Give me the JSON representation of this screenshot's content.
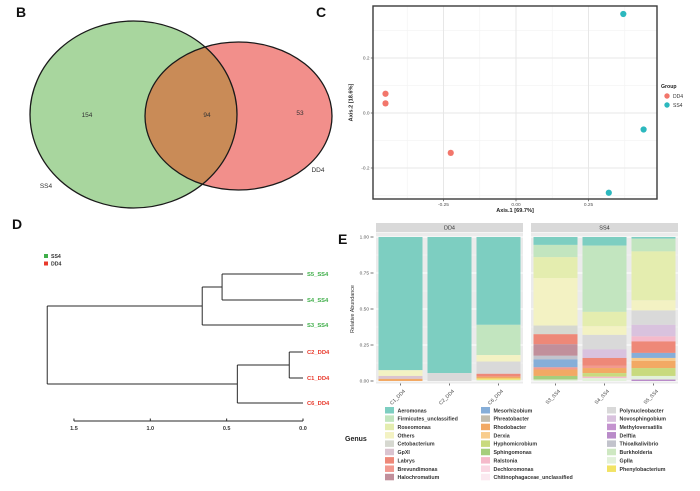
{
  "figure": {
    "panel_labels": {
      "b": "B",
      "c": "C",
      "d": "D",
      "e": "E"
    }
  },
  "chart_data": [
    {
      "id": "venn",
      "type": "venn",
      "sets": [
        {
          "label": "SS4",
          "unique_count": "154",
          "color": "#A8D69E"
        },
        {
          "label": "DD4",
          "unique_count": "53",
          "color": "#F28F8B"
        }
      ],
      "overlap_count": "94",
      "overlap_color": "#C98B57",
      "outline_color": "#1a1a1a"
    },
    {
      "id": "pcoa",
      "type": "scatter",
      "xlabel": "Axis.1  [69.7%]",
      "ylabel": "Axis.2  [18.6%]",
      "xlim": [
        -0.5,
        0.5
      ],
      "ylim": [
        -0.31,
        0.39
      ],
      "xticks": [
        {
          "label": "-0.25",
          "value": -0.25
        },
        {
          "label": "0.00",
          "value": 0
        },
        {
          "label": "0.25",
          "value": 0.25
        }
      ],
      "yticks": [
        {
          "label": "0.2",
          "value": 0.2
        },
        {
          "label": "0.0",
          "value": 0
        },
        {
          "label": "-0.2",
          "value": -0.2
        }
      ],
      "legend_title": "Group",
      "series": [
        {
          "name": "DD4",
          "color": "#F2766B",
          "points": [
            [
              -0.45,
              0.07
            ],
            [
              -0.45,
              0.035
            ],
            [
              -0.225,
              -0.145
            ]
          ]
        },
        {
          "name": "SS4",
          "color": "#2CB8BE",
          "points": [
            [
              0.37,
              0.36
            ],
            [
              0.44,
              -0.06
            ],
            [
              0.32,
              -0.29
            ]
          ]
        }
      ]
    },
    {
      "id": "dendrogram",
      "type": "dendrogram",
      "legend": [
        {
          "label": "SS4",
          "color": "#3FAE49"
        },
        {
          "label": "DD4",
          "color": "#E8392B"
        }
      ],
      "leaves": [
        {
          "name": "S5_SS4",
          "group": "SS4"
        },
        {
          "name": "S4_SS4",
          "group": "SS4"
        },
        {
          "name": "S3_SS4",
          "group": "SS4"
        },
        {
          "name": "C2_DD4",
          "group": "DD4"
        },
        {
          "name": "C1_DD4",
          "group": "DD4"
        },
        {
          "name": "C6_DD4",
          "group": "DD4"
        }
      ],
      "merges": [
        {
          "id": "m1",
          "a": "S5_SS4",
          "b": "S4_SS4",
          "height": 0.53
        },
        {
          "id": "m2",
          "a": "m1",
          "b": "S3_SS4",
          "height": 0.66
        },
        {
          "id": "m3",
          "a": "C2_DD4",
          "b": "C1_DD4",
          "height": 0.09
        },
        {
          "id": "m4",
          "a": "m3",
          "b": "C6_DD4",
          "height": 0.43
        },
        {
          "id": "root",
          "a": "m2",
          "b": "m4",
          "height": 1.675
        }
      ],
      "axis_ticks": [
        {
          "label": "1.5",
          "value": 1.5
        },
        {
          "label": "1.0",
          "value": 1.0
        },
        {
          "label": "0.5",
          "value": 0.5
        },
        {
          "label": "0.0",
          "value": 0.0
        }
      ]
    },
    {
      "id": "abundance",
      "type": "stacked-bar",
      "ylabel": "Relative Abundance",
      "yticks": [
        {
          "label": "1.00",
          "value": 1.0
        },
        {
          "label": "0.75",
          "value": 0.75
        },
        {
          "label": "0.50",
          "value": 0.5
        },
        {
          "label": "0.25",
          "value": 0.25
        },
        {
          "label": "0.00",
          "value": 0.0
        }
      ],
      "legend_title": "Genus",
      "facets": [
        {
          "label": "DD4",
          "bars": [
            {
              "name": "C1_DD4",
              "segments": [
                [
                  "Aeromonas",
                  0.925
                ],
                [
                  "Others",
                  0.04
                ],
                [
                  "GpXI",
                  0.02
                ],
                [
                  "Rhodobacter",
                  0.015
                ]
              ]
            },
            {
              "name": "C2_DD4",
              "segments": [
                [
                  "Aeromonas",
                  0.945
                ],
                [
                  "Polynucleobacter",
                  0.055
                ]
              ]
            },
            {
              "name": "C6_DD4",
              "segments": [
                [
                  "Aeromonas",
                  0.61
                ],
                [
                  "Firmicutes_unclassified",
                  0.21
                ],
                [
                  "Others",
                  0.045
                ],
                [
                  "Polynucleobacter",
                  0.085
                ],
                [
                  "Labrys",
                  0.02
                ],
                [
                  "Rhodobacter",
                  0.012
                ],
                [
                  "Phenylobacterium",
                  0.01
                ],
                [
                  "GpIIa",
                  0.008
                ]
              ]
            }
          ]
        },
        {
          "label": "SS4",
          "bars": [
            {
              "name": "S3_SS4",
              "segments": [
                [
                  "Aeromonas",
                  0.055
                ],
                [
                  "Firmicutes_unclassified",
                  0.085
                ],
                [
                  "Roseomonas",
                  0.145
                ],
                [
                  "Others",
                  0.33
                ],
                [
                  "Cetobacterium",
                  0.06
                ],
                [
                  "Labrys",
                  0.07
                ],
                [
                  "Halochromatium",
                  0.08
                ],
                [
                  "Thioalkalivibrio",
                  0.025
                ],
                [
                  "Mesorhizobium",
                  0.055
                ],
                [
                  "Brevundimonas",
                  0.015
                ],
                [
                  "Rhodobacter",
                  0.045
                ],
                [
                  "Sphingomonas",
                  0.025
                ],
                [
                  "GpIIa",
                  0.01
                ]
              ]
            },
            {
              "name": "S4_SS4",
              "segments": [
                [
                  "Aeromonas",
                  0.06
                ],
                [
                  "Firmicutes_unclassified",
                  0.46
                ],
                [
                  "Roseomonas",
                  0.1
                ],
                [
                  "Others",
                  0.06
                ],
                [
                  "Polynucleobacter",
                  0.1
                ],
                [
                  "Novosphingobium",
                  0.06
                ],
                [
                  "Labrys",
                  0.055
                ],
                [
                  "Brevundimonas",
                  0.015
                ],
                [
                  "Rhodobacter",
                  0.035
                ],
                [
                  "Hyphomicrobium",
                  0.025
                ],
                [
                  "Ralstonia",
                  0.01
                ],
                [
                  "GpIIa",
                  0.02
                ]
              ]
            },
            {
              "name": "S5_SS4",
              "segments": [
                [
                  "Aeromonas",
                  0.012
                ],
                [
                  "Firmicutes_unclassified",
                  0.088
                ],
                [
                  "Roseomonas",
                  0.34
                ],
                [
                  "Others",
                  0.07
                ],
                [
                  "Polynucleobacter",
                  0.1
                ],
                [
                  "Novosphingobium",
                  0.08
                ],
                [
                  "Ralstonia",
                  0.035
                ],
                [
                  "Labrys",
                  0.08
                ],
                [
                  "Mesorhizobium",
                  0.035
                ],
                [
                  "Derxia",
                  0.02
                ],
                [
                  "Rhodobacter",
                  0.05
                ],
                [
                  "Hyphomicrobium",
                  0.055
                ],
                [
                  "GpIIa",
                  0.025
                ],
                [
                  "Delftia",
                  0.01
                ]
              ]
            }
          ]
        }
      ],
      "genus_colors": {
        "Aeromonas": "#7DCEC1",
        "Firmicutes_unclassified": "#C2E5BF",
        "Roseomonas": "#E4EDAF",
        "Others": "#F3F2C3",
        "Cetobacterium": "#D6D8D0",
        "GpXI": "#DAC4D0",
        "Labrys": "#EE8878",
        "Brevundimonas": "#F29A90",
        "Halochromatium": "#C18F9B",
        "Mesorhizobium": "#86AED8",
        "Phreatobacter": "#C3BDAD",
        "Rhodobacter": "#F2A964",
        "Derxia": "#F8CC8C",
        "Hyphomicrobium": "#C8DA7E",
        "Sphingomonas": "#A5CE7D",
        "Ralstonia": "#F5BACB",
        "Dechloromonas": "#FAD7E3",
        "Chitinophagaceae_unclassified": "#FBE9F0",
        "Polynucleobacter": "#D9D9D9",
        "Novosphingobium": "#D9C2DE",
        "Methyloversatilis": "#C493CF",
        "Delftia": "#B98BC9",
        "Thioalkalivibrio": "#C2C3CC",
        "Burkholderia": "#CEE8C2",
        "GpIIa": "#E2F1DA",
        "Phenylobacterium": "#F2E364"
      },
      "legend_columns": [
        [
          "Aeromonas",
          "Firmicutes_unclassified",
          "Roseomonas",
          "Others",
          "Cetobacterium",
          "GpXI",
          "Labrys",
          "Brevundimonas",
          "Halochromatium"
        ],
        [
          "Mesorhizobium",
          "Phreatobacter",
          "Rhodobacter",
          "Derxia",
          "Hyphomicrobium",
          "Sphingomonas",
          "Ralstonia",
          "Dechloromonas",
          "Chitinophagaceae_unclassified"
        ],
        [
          "Polynucleobacter",
          "Novosphingobium",
          "Methyloversatilis",
          "Delftia",
          "Thioalkalivibrio",
          "Burkholderia",
          "GpIIa",
          "Phenylobacterium"
        ]
      ]
    }
  ]
}
